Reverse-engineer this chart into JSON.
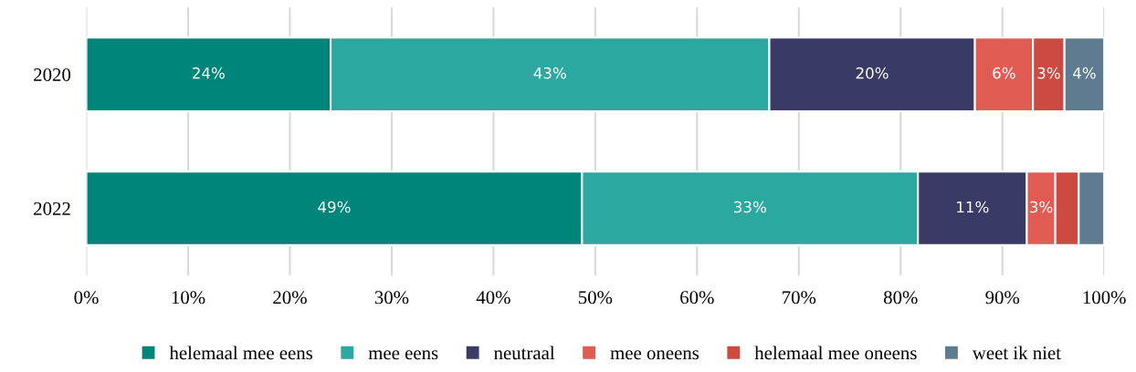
{
  "chart_data": {
    "type": "bar",
    "orientation": "horizontal",
    "stacked": true,
    "categories": [
      "2020",
      "2022"
    ],
    "series": [
      {
        "name": "helemaal mee eens",
        "color": "#00857a",
        "values": [
          24.0,
          48.7
        ],
        "value_labels": [
          "24%",
          "49%"
        ]
      },
      {
        "name": "mee eens",
        "color": "#2ba89f",
        "values": [
          43.1,
          33.0
        ],
        "value_labels": [
          "43%",
          "33%"
        ]
      },
      {
        "name": "neutraal",
        "color": "#3a3a66",
        "values": [
          20.2,
          10.7
        ],
        "value_labels": [
          "20%",
          "11%"
        ]
      },
      {
        "name": "mee oneens",
        "color": "#e05c52",
        "values": [
          5.7,
          2.8
        ],
        "value_labels": [
          "6%",
          "3%"
        ]
      },
      {
        "name": "helemaal mee oneens",
        "color": "#cc4a42",
        "values": [
          3.1,
          2.3
        ],
        "value_labels": [
          "3%",
          null
        ]
      },
      {
        "name": "weet ik niet",
        "color": "#5f7b8f",
        "values": [
          3.9,
          2.5
        ],
        "value_labels": [
          "4%",
          null
        ]
      }
    ],
    "xlim": [
      0,
      100
    ],
    "xticks": [
      {
        "value": 0,
        "label": "0%"
      },
      {
        "value": 10,
        "label": "10%"
      },
      {
        "value": 20,
        "label": "20%"
      },
      {
        "value": 30,
        "label": "30%"
      },
      {
        "value": 40,
        "label": "40%"
      },
      {
        "value": 50,
        "label": "50%"
      },
      {
        "value": 60,
        "label": "60%"
      },
      {
        "value": 70,
        "label": "70%"
      },
      {
        "value": 80,
        "label": "80%"
      },
      {
        "value": 90,
        "label": "90%"
      },
      {
        "value": 100,
        "label": "100%"
      }
    ],
    "grid": "x",
    "legend": "bottom"
  }
}
